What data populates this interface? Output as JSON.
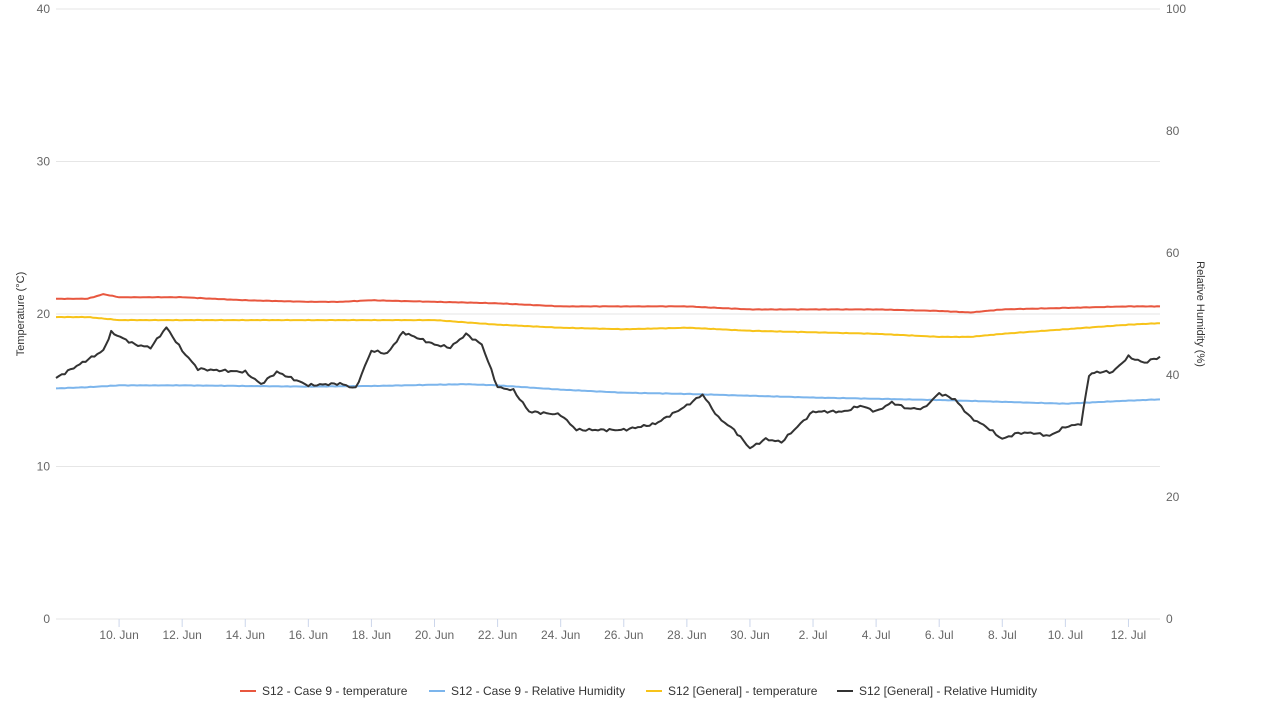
{
  "chart_data": {
    "type": "line",
    "title": "",
    "xlabel": "",
    "x_ticks": [
      "10. Jun",
      "12. Jun",
      "14. Jun",
      "16. Jun",
      "18. Jun",
      "20. Jun",
      "22. Jun",
      "24. Jun",
      "26. Jun",
      "28. Jun",
      "30. Jun",
      "2. Jul",
      "4. Jul",
      "6. Jul",
      "8. Jul",
      "10. Jul",
      "12. Jul"
    ],
    "x_range": [
      "2021-06-08",
      "2021-07-13"
    ],
    "y_left": {
      "label": "Temperature (°C)",
      "range": [
        0,
        40
      ],
      "ticks": [
        "0",
        "10",
        "20",
        "30",
        "40"
      ]
    },
    "y_right": {
      "label": "Relative Humidity (%)",
      "range": [
        0,
        100
      ],
      "ticks": [
        "0",
        "20",
        "40",
        "60",
        "80",
        "100"
      ]
    },
    "grid": true,
    "legend_position": "bottom-center",
    "series": [
      {
        "name": "S12 - Case 9 - temperature",
        "axis": "left",
        "color": "#e8573f",
        "points": [
          [
            "2021-06-08",
            21.0
          ],
          [
            "2021-06-09",
            21.0
          ],
          [
            "2021-06-09T12:00",
            21.3
          ],
          [
            "2021-06-10",
            21.1
          ],
          [
            "2021-06-12",
            21.1
          ],
          [
            "2021-06-14",
            20.9
          ],
          [
            "2021-06-16",
            20.8
          ],
          [
            "2021-06-17",
            20.8
          ],
          [
            "2021-06-18",
            20.9
          ],
          [
            "2021-06-20",
            20.8
          ],
          [
            "2021-06-22",
            20.7
          ],
          [
            "2021-06-24",
            20.5
          ],
          [
            "2021-06-26",
            20.5
          ],
          [
            "2021-06-28",
            20.5
          ],
          [
            "2021-06-30",
            20.3
          ],
          [
            "2021-07-02",
            20.3
          ],
          [
            "2021-07-04",
            20.3
          ],
          [
            "2021-07-06",
            20.2
          ],
          [
            "2021-07-07",
            20.1
          ],
          [
            "2021-07-08",
            20.3
          ],
          [
            "2021-07-10",
            20.4
          ],
          [
            "2021-07-12",
            20.5
          ],
          [
            "2021-07-13",
            20.5
          ]
        ]
      },
      {
        "name": "S12 - Case 9 - Relative Humidity",
        "axis": "right",
        "color": "#7cb5ec",
        "points": [
          [
            "2021-06-08",
            37.8
          ],
          [
            "2021-06-09",
            38.0
          ],
          [
            "2021-06-10",
            38.3
          ],
          [
            "2021-06-12",
            38.3
          ],
          [
            "2021-06-14",
            38.2
          ],
          [
            "2021-06-16",
            38.1
          ],
          [
            "2021-06-18",
            38.2
          ],
          [
            "2021-06-20",
            38.4
          ],
          [
            "2021-06-21",
            38.5
          ],
          [
            "2021-06-22",
            38.3
          ],
          [
            "2021-06-24",
            37.6
          ],
          [
            "2021-06-26",
            37.1
          ],
          [
            "2021-06-28",
            36.9
          ],
          [
            "2021-06-30",
            36.6
          ],
          [
            "2021-07-02",
            36.3
          ],
          [
            "2021-07-04",
            36.1
          ],
          [
            "2021-07-06",
            35.9
          ],
          [
            "2021-07-08",
            35.6
          ],
          [
            "2021-07-10",
            35.3
          ],
          [
            "2021-07-12",
            35.8
          ],
          [
            "2021-07-13",
            36.0
          ]
        ]
      },
      {
        "name": "S12 [General] - temperature",
        "axis": "left",
        "color": "#f7c31a",
        "points": [
          [
            "2021-06-08",
            19.8
          ],
          [
            "2021-06-09",
            19.8
          ],
          [
            "2021-06-10",
            19.6
          ],
          [
            "2021-06-12",
            19.6
          ],
          [
            "2021-06-14",
            19.6
          ],
          [
            "2021-06-16",
            19.6
          ],
          [
            "2021-06-18",
            19.6
          ],
          [
            "2021-06-20",
            19.6
          ],
          [
            "2021-06-22",
            19.3
          ],
          [
            "2021-06-24",
            19.1
          ],
          [
            "2021-06-26",
            19.0
          ],
          [
            "2021-06-28",
            19.1
          ],
          [
            "2021-06-30",
            18.9
          ],
          [
            "2021-07-02",
            18.8
          ],
          [
            "2021-07-04",
            18.7
          ],
          [
            "2021-07-06",
            18.5
          ],
          [
            "2021-07-07",
            18.5
          ],
          [
            "2021-07-08",
            18.7
          ],
          [
            "2021-07-10",
            19.0
          ],
          [
            "2021-07-12",
            19.3
          ],
          [
            "2021-07-13",
            19.4
          ]
        ]
      },
      {
        "name": "S12 [General] - Relative Humidity",
        "axis": "right",
        "color": "#333333",
        "points": [
          [
            "2021-06-08",
            39.5
          ],
          [
            "2021-06-09T12:00",
            44.0
          ],
          [
            "2021-06-09T18:00",
            47.0
          ],
          [
            "2021-06-10T12:00",
            45.0
          ],
          [
            "2021-06-11",
            44.5
          ],
          [
            "2021-06-11T12:00",
            47.8
          ],
          [
            "2021-06-12",
            44.0
          ],
          [
            "2021-06-12T12:00",
            41.0
          ],
          [
            "2021-06-13",
            40.8
          ],
          [
            "2021-06-14",
            40.5
          ],
          [
            "2021-06-14T12:00",
            38.5
          ],
          [
            "2021-06-15",
            40.5
          ],
          [
            "2021-06-16",
            38.3
          ],
          [
            "2021-06-17",
            38.6
          ],
          [
            "2021-06-17T12:00",
            37.8
          ],
          [
            "2021-06-18",
            44.0
          ],
          [
            "2021-06-18T12:00",
            43.5
          ],
          [
            "2021-06-19",
            47.0
          ],
          [
            "2021-06-20",
            45.0
          ],
          [
            "2021-06-20T12:00",
            44.5
          ],
          [
            "2021-06-21",
            46.7
          ],
          [
            "2021-06-21T12:00",
            45.0
          ],
          [
            "2021-06-22",
            38.0
          ],
          [
            "2021-06-22T12:00",
            37.5
          ],
          [
            "2021-06-23",
            34.0
          ],
          [
            "2021-06-24",
            33.5
          ],
          [
            "2021-06-24T12:00",
            31.0
          ],
          [
            "2021-06-25",
            31.0
          ],
          [
            "2021-06-26",
            31.0
          ],
          [
            "2021-06-27",
            32.0
          ],
          [
            "2021-06-28",
            35.0
          ],
          [
            "2021-06-28T12:00",
            36.8
          ],
          [
            "2021-06-29",
            33.0
          ],
          [
            "2021-06-29T12:00",
            31.0
          ],
          [
            "2021-06-30",
            28.0
          ],
          [
            "2021-06-30T12:00",
            29.5
          ],
          [
            "2021-07-01",
            29.0
          ],
          [
            "2021-07-01T12:00",
            31.5
          ],
          [
            "2021-07-02",
            34.0
          ],
          [
            "2021-07-03",
            34.0
          ],
          [
            "2021-07-03T12:00",
            35.0
          ],
          [
            "2021-07-04",
            34.0
          ],
          [
            "2021-07-04T12:00",
            35.5
          ],
          [
            "2021-07-05",
            34.5
          ],
          [
            "2021-07-05T12:00",
            34.5
          ],
          [
            "2021-07-06",
            37.0
          ],
          [
            "2021-07-06T12:00",
            36.0
          ],
          [
            "2021-07-07",
            33.0
          ],
          [
            "2021-07-07T12:00",
            31.5
          ],
          [
            "2021-07-08",
            29.5
          ],
          [
            "2021-07-08T12:00",
            30.5
          ],
          [
            "2021-07-09",
            30.5
          ],
          [
            "2021-07-09T12:00",
            30.0
          ],
          [
            "2021-07-10",
            31.5
          ],
          [
            "2021-07-10T12:00",
            32.0
          ],
          [
            "2021-07-10T18:00",
            40.0
          ],
          [
            "2021-07-11",
            40.5
          ],
          [
            "2021-07-11T12:00",
            40.5
          ],
          [
            "2021-07-12",
            43.0
          ],
          [
            "2021-07-12T12:00",
            42.0
          ],
          [
            "2021-07-13",
            43.0
          ]
        ]
      }
    ]
  }
}
